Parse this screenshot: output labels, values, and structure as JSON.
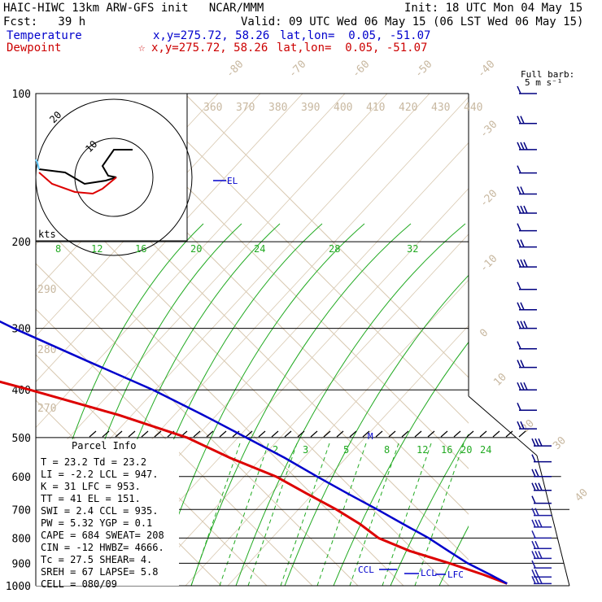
{
  "header": {
    "title": "HAIC-HIWC 13km ARW-GFS init   NCAR/MMM",
    "init": "Init: 18 UTC Mon 04 May 15",
    "fcst": "Fcst:   39 h",
    "valid": "Valid: 09 UTC Wed 06 May 15 (06 LST Wed 06 May 15)",
    "temperature_label": "Temperature",
    "temperature_xy": "x,y=275.72, 58.26",
    "temperature_latlon": "lat,lon=  0.05, -51.07",
    "dewpoint_label": "Dewpoint",
    "dewpoint_marker": "☆",
    "dewpoint_xy": "x,y=275.72, 58.26",
    "dewpoint_latlon": "lat,lon=  0.05, -51.07"
  },
  "barb_legend": {
    "line1": "Full barb:",
    "line2": "5 m s⁻¹"
  },
  "parcel_info": {
    "title": "Parcel Info",
    "rows": [
      "T   =    23.2  Td =  23.2",
      "LI  =    -2.2  LCL =  947.",
      "K   =      31  LFC =  953.",
      "TT  =      41  EL  =  151.",
      "SWI =     2.4  CCL =  935.",
      "PW  =    5.32  YGP =   0.1",
      "CAPE =    684  SWEAT=  208",
      "CIN =     -12  HWBZ= 4666.",
      "Tc  =    27.5  SHEAR=   4.",
      "SREH =     67  LAPSE=  5.8",
      "CELL = 080/09"
    ]
  },
  "hodograph": {
    "ring_labels": [
      "20",
      "10"
    ],
    "units_label": "kts"
  },
  "level_labels": {
    "el": "EL",
    "ccl": "CCL",
    "lcl": "LCL",
    "lfc": "LFC",
    "max": "M"
  },
  "colors": {
    "temperature": "#0000cc",
    "dewpoint": "#dd0000",
    "isotherm": "#d8c8b0",
    "mixing_ratio": "#22aa22",
    "isobar": "#000000"
  },
  "chart_data": {
    "type": "line",
    "title": "",
    "ylabel": "",
    "xlabel": "",
    "y_scale": "log",
    "pressure_ticks": [
      100,
      200,
      300,
      400,
      500,
      600,
      700,
      800,
      900,
      1000
    ],
    "isotherm_labels": [
      -80,
      -70,
      -60,
      -50,
      -40,
      -30,
      -20,
      -10,
      0,
      10,
      20,
      30,
      40
    ],
    "theta_labels": [
      270,
      280,
      290,
      360,
      370,
      380,
      390,
      400,
      410,
      420,
      430,
      440
    ],
    "mixing_ratio_labels_upper": [
      8,
      12,
      16,
      20,
      24,
      28,
      32
    ],
    "mixing_ratio_labels_lower": [
      2,
      3,
      5,
      8,
      12,
      16,
      20,
      24
    ],
    "series": [
      {
        "name": "Temperature",
        "points": [
          {
            "p": 100,
            "t": -78
          },
          {
            "p": 125,
            "t": -74
          },
          {
            "p": 150,
            "t": -66
          },
          {
            "p": 175,
            "t": -57
          },
          {
            "p": 200,
            "t": -50
          },
          {
            "p": 250,
            "t": -38
          },
          {
            "p": 300,
            "t": -29
          },
          {
            "p": 350,
            "t": -20
          },
          {
            "p": 400,
            "t": -12
          },
          {
            "p": 450,
            "t": -6.5
          },
          {
            "p": 500,
            "t": -2
          },
          {
            "p": 550,
            "t": 2
          },
          {
            "p": 600,
            "t": 5
          },
          {
            "p": 650,
            "t": 8
          },
          {
            "p": 700,
            "t": 11
          },
          {
            "p": 750,
            "t": 13.5
          },
          {
            "p": 800,
            "t": 16
          },
          {
            "p": 850,
            "t": 17.5
          },
          {
            "p": 900,
            "t": 19
          },
          {
            "p": 950,
            "t": 21.5
          },
          {
            "p": 990,
            "t": 23.2
          }
        ]
      },
      {
        "name": "Dewpoint",
        "points": [
          {
            "p": 100,
            "t": -82
          },
          {
            "p": 125,
            "t": -89
          },
          {
            "p": 150,
            "t": -95
          },
          {
            "p": 175,
            "t": -99
          },
          {
            "p": 200,
            "t": -104
          },
          {
            "p": 225,
            "t": -107
          },
          {
            "p": 245,
            "t": -109
          },
          {
            "p": 260,
            "t": -97
          },
          {
            "p": 285,
            "t": -77
          },
          {
            "p": 300,
            "t": -71
          },
          {
            "p": 350,
            "t": -56
          },
          {
            "p": 400,
            "t": -39
          },
          {
            "p": 450,
            "t": -25
          },
          {
            "p": 500,
            "t": -15
          },
          {
            "p": 550,
            "t": -10
          },
          {
            "p": 600,
            "t": -4
          },
          {
            "p": 650,
            "t": -1
          },
          {
            "p": 700,
            "t": 2
          },
          {
            "p": 750,
            "t": 4
          },
          {
            "p": 800,
            "t": 5
          },
          {
            "p": 850,
            "t": 9
          },
          {
            "p": 900,
            "t": 15
          },
          {
            "p": 950,
            "t": 20
          },
          {
            "p": 990,
            "t": 23.2
          }
        ]
      }
    ]
  }
}
